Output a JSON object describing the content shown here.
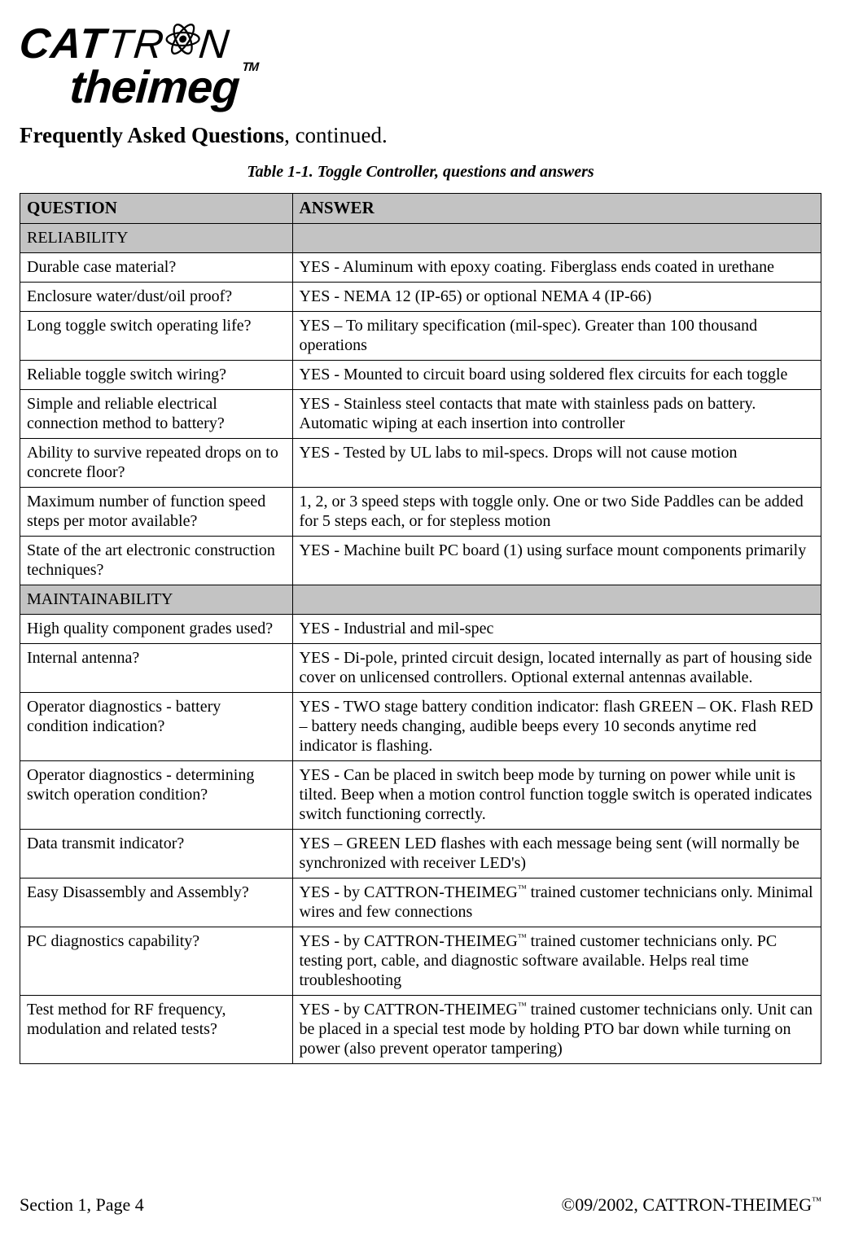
{
  "logo": {
    "line1a": "CAT",
    "line1b_pre": "TR",
    "line1b_post": "N",
    "line2": "theimeg",
    "tm": "TM"
  },
  "faq": {
    "bold": "Frequently Asked Questions",
    "rest": ", continued."
  },
  "table": {
    "caption": "Table 1-1.  Toggle Controller, questions and answers",
    "header_q": "QUESTION",
    "header_a": "ANSWER",
    "col_widths": {
      "q": "34%",
      "a": "66%"
    },
    "border_color": "#000000",
    "section_bg": "#c3c3c3",
    "cell_font_size": 20,
    "sections": [
      {
        "title": "RELIABILITY",
        "rows": [
          {
            "q": "Durable case material?",
            "a": "YES - Aluminum with epoxy coating.  Fiberglass ends coated in urethane"
          },
          {
            "q": "Enclosure water/dust/oil proof?",
            "a": "YES - NEMA 12 (IP-65)  or optional NEMA 4 (IP-66)"
          },
          {
            "q": "Long toggle switch operating life?",
            "a": "YES – To military specification (mil-spec). Greater than 100 thousand operations"
          },
          {
            "q": "Reliable toggle switch  wiring?",
            "a": "YES - Mounted to circuit board using soldered flex circuits for each toggle"
          },
          {
            "q": "Simple and reliable electrical connection method to battery?",
            "a": "YES - Stainless steel contacts that mate with stainless pads on battery. Automatic wiping at each insertion into controller"
          },
          {
            "q": "Ability to survive repeated drops on to concrete floor?",
            "a": "YES - Tested by UL labs to mil-specs.  Drops will not cause motion"
          },
          {
            "q": "Maximum number of function speed steps per motor available?",
            "a": "1, 2, or 3 speed steps with toggle only.  One or two Side Paddles can be added for 5 steps each, or for stepless motion"
          },
          {
            "q": "State of the art electronic construction techniques?",
            "a": "YES - Machine built PC board (1) using surface mount components primarily"
          }
        ]
      },
      {
        "title": "MAINTAINABILITY",
        "rows": [
          {
            "q": "High quality component grades used?",
            "a": "YES - Industrial and mil-spec"
          },
          {
            "q": "Internal antenna?",
            "a": "YES - Di-pole, printed circuit design, located internally as part of housing side cover on unlicensed controllers.  Optional external antennas available."
          },
          {
            "q": "Operator diagnostics - battery condition indication?",
            "a": "YES - TWO stage battery condition indicator: flash GREEN – OK.  Flash RED – battery needs changing, audible beeps every 10 seconds anytime red indicator is flashing."
          },
          {
            "q": "Operator diagnostics - determining switch operation condition?",
            "a": "YES - Can be placed in switch beep mode by turning on power while unit is tilted. Beep when a motion control function  toggle switch is operated indicates switch functioning correctly."
          },
          {
            "q": "Data transmit indicator?",
            "a": "YES – GREEN LED flashes with each message being sent (will normally be synchronized with receiver LED's)"
          },
          {
            "q": "Easy Disassembly and Assembly?",
            "a_special": "easy_disassembly"
          },
          {
            "q": "PC diagnostics capability?",
            "a_special": "pc_diag"
          },
          {
            "q": "Test method for RF frequency, modulation and related tests?",
            "a_special": "rf_test"
          }
        ]
      }
    ],
    "special_answers": {
      "easy_disassembly": {
        "pre": "YES - by CATTRON-THEIMEG",
        "tm": "™",
        "post": " trained customer technicians only. Minimal wires and few connections"
      },
      "pc_diag": {
        "pre": "YES - by CATTRON-THEIMEG",
        "tm": "™",
        "post": " trained customer technicians only.   PC testing port, cable, and diagnostic software available. Helps real time troubleshooting"
      },
      "rf_test": {
        "pre": "YES - by CATTRON-THEIMEG",
        "tm": "™",
        "post": " trained customer technicians only. Unit can be placed in a special test mode by holding PTO bar down while turning on power (also prevent operator tampering)"
      }
    }
  },
  "footer": {
    "left": "Section 1, Page 4",
    "right_pre": "©09/2002, CATTRON-THEIMEG",
    "right_tm": "™"
  }
}
